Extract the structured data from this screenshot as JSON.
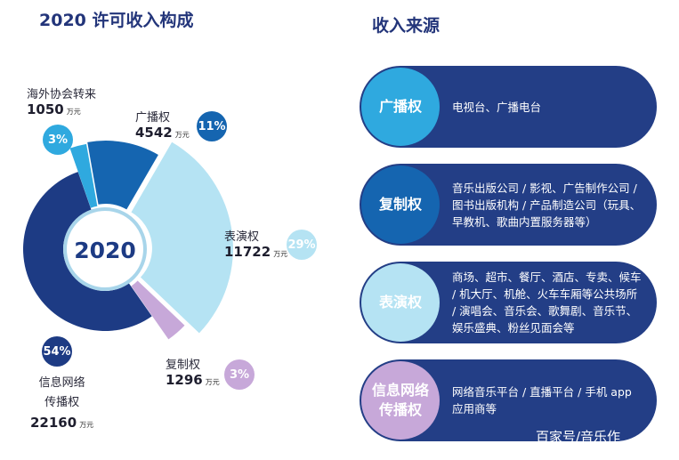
{
  "left_title": "2020 许可收入构成",
  "right_title": "收入来源",
  "chart_data": {
    "type": "pie",
    "title": "2020 许可收入构成",
    "center_label": "2020",
    "unit": "万元",
    "slices": [
      {
        "key": "broadcast",
        "name": "广播权",
        "value": 4542,
        "percent_label": "11%",
        "color": "#1565b0"
      },
      {
        "key": "performance",
        "name": "表演权",
        "value": 11722,
        "percent_label": "29%",
        "color": "#b5e3f3"
      },
      {
        "key": "reproduction",
        "name": "复制权",
        "value": 1296,
        "percent_label": "3%",
        "color": "#c7a8d9"
      },
      {
        "key": "network",
        "name": "信息网络传播权",
        "value": 22160,
        "percent_label": "54%",
        "color": "#1d3b84"
      },
      {
        "key": "overseas",
        "name": "海外协会转来",
        "value": 1050,
        "percent_label": "3%",
        "color": "#2fa9df"
      }
    ]
  },
  "labels": {
    "broadcast": {
      "name": "广播权",
      "value": "4542",
      "unit": "万元",
      "badge": "11%"
    },
    "performance": {
      "name": "表演权",
      "value": "11722",
      "unit": "万元",
      "badge": "29%"
    },
    "reproduction": {
      "name": "复制权",
      "value": "1296",
      "unit": "万元",
      "badge": "3%"
    },
    "network": {
      "name_line1": "信息网络",
      "name_line2": "传播权",
      "value": "22160",
      "unit": "万元",
      "badge": "54%"
    },
    "overseas": {
      "name": "海外协会转来",
      "value": "1050",
      "unit": "万元",
      "badge": "3%"
    }
  },
  "colors": {
    "broadcast": "#1565b0",
    "performance": "#b5e3f3",
    "reproduction": "#c7a8d9",
    "network": "#1d3b84",
    "overseas": "#2fa9df",
    "card_bg": "#233e86",
    "card_1_circle": "#2fa9df",
    "card_2_circle": "#1565b0",
    "card_3_circle": "#b5e3f3",
    "card_4_circle": "#c7a8d9"
  },
  "cards": [
    {
      "title_line1": "广播权",
      "title_line2": "",
      "description": "电视台、广播电台"
    },
    {
      "title_line1": "复制权",
      "title_line2": "",
      "description": "音乐出版公司 / 影视、广告制作公司 / 图书出版机构 / 产品制造公司（玩具、早教机、歌曲内置服务器等）"
    },
    {
      "title_line1": "表演权",
      "title_line2": "",
      "description": "商场、超市、餐厅、酒店、专卖、候车 / 机大厅、机舱、火车车厢等公共场所 / 演唱会、音乐会、歌舞剧、音乐节、娱乐盛典、粉丝见面会等"
    },
    {
      "title_line1": "信息网络",
      "title_line2": "传播权",
      "description": "网络音乐平台 / 直播平台 / 手机 app 应用商等"
    }
  ],
  "watermark": "百家号/音乐作"
}
